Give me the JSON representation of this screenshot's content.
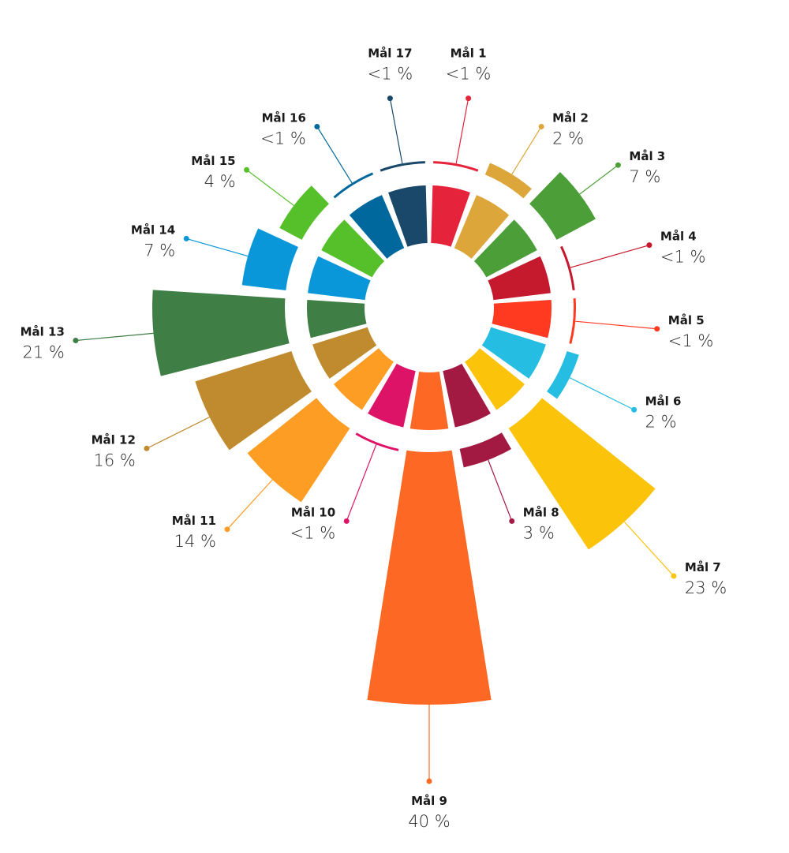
{
  "chart_data": {
    "type": "radial-bar",
    "title": "",
    "categories": [
      "Mål 1",
      "Mål 2",
      "Mål 3",
      "Mål 4",
      "Mål 5",
      "Mål 6",
      "Mål 7",
      "Mål 8",
      "Mål 9",
      "Mål 10",
      "Mål 11",
      "Mål 12",
      "Mål 13",
      "Mål 14",
      "Mål 15",
      "Mål 16",
      "Mål 17"
    ],
    "value_labels": [
      "<1 %",
      "2 %",
      "7 %",
      "<1 %",
      "<1 %",
      "2 %",
      "23 %",
      "3 %",
      "40 %",
      "<1 %",
      "14 %",
      "16 %",
      "21 %",
      "7 %",
      "4 %",
      "<1 %",
      "<1 %"
    ],
    "values": [
      0.5,
      2,
      7,
      0.5,
      0.5,
      2,
      23,
      3,
      40,
      0.5,
      14,
      16,
      21,
      7,
      4,
      0.5,
      0.5
    ],
    "colors": [
      "#E5243B",
      "#DDA63A",
      "#4C9F38",
      "#C5192D",
      "#FF3A21",
      "#26BDE2",
      "#FCC30B",
      "#A21942",
      "#FD6925",
      "#DD1367",
      "#FD9D24",
      "#BF8B2E",
      "#3F7E44",
      "#0A97D9",
      "#56C02B",
      "#00689D",
      "#19486A"
    ],
    "legend": "none",
    "grid": false
  }
}
